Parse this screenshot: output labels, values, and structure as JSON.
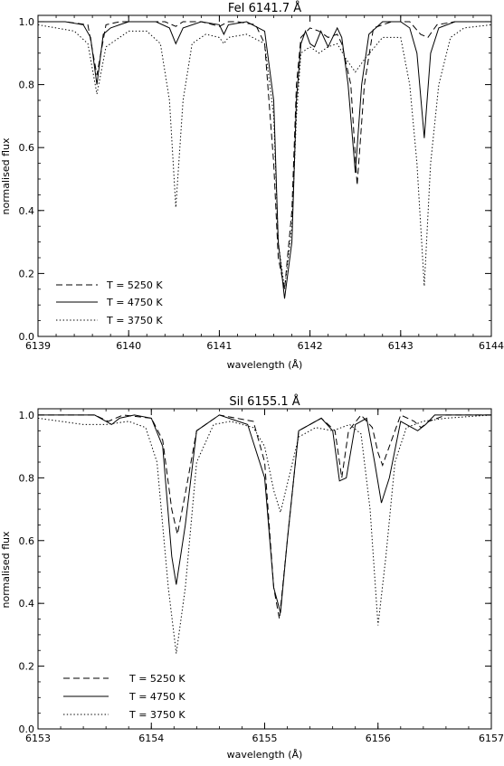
{
  "chart_data": [
    {
      "type": "line",
      "title": "FeI 6141.7 Å",
      "xlabel": "wavelength (Å)",
      "ylabel": "normalised flux",
      "xlim": [
        6139,
        6144
      ],
      "ylim": [
        0.0,
        1.02
      ],
      "xticks": [
        6139,
        6140,
        6141,
        6142,
        6143,
        6144
      ],
      "xtick_labels": [
        "6139",
        "6140",
        "6141",
        "6142",
        "6143",
        "6144"
      ],
      "yticks": [
        0.0,
        0.2,
        0.4,
        0.6,
        0.8,
        1.0
      ],
      "ytick_labels": [
        "0.0",
        "0.2",
        "0.4",
        "0.6",
        "0.8",
        "1.0"
      ],
      "legend_position": "bottom-left",
      "series": [
        {
          "name": "T = 5250 K",
          "style": "dashed",
          "x": [
            6139.0,
            6139.3,
            6139.55,
            6139.65,
            6139.75,
            6139.9,
            6140.1,
            6140.4,
            6140.52,
            6140.6,
            6140.8,
            6141.0,
            6141.1,
            6141.2,
            6141.4,
            6141.5,
            6141.6,
            6141.65,
            6141.72,
            6141.8,
            6141.85,
            6141.9,
            6142.0,
            6142.1,
            6142.2,
            6142.3,
            6142.35,
            6142.45,
            6142.52,
            6142.6,
            6142.7,
            6142.9,
            6143.1,
            6143.22,
            6143.3,
            6143.4,
            6143.6,
            6144.0
          ],
          "y": [
            1.0,
            1.0,
            0.99,
            0.83,
            0.99,
            1.0,
            1.0,
            1.0,
            0.985,
            1.0,
            1.0,
            0.985,
            1.0,
            1.0,
            0.99,
            0.93,
            0.55,
            0.25,
            0.15,
            0.4,
            0.8,
            0.95,
            0.98,
            0.97,
            0.95,
            0.96,
            0.93,
            0.8,
            0.48,
            0.8,
            0.98,
            1.0,
            1.0,
            0.96,
            0.95,
            0.99,
            1.0,
            1.0
          ]
        },
        {
          "name": "T = 4750 K",
          "style": "solid",
          "x": [
            6139.0,
            6139.3,
            6139.5,
            6139.58,
            6139.65,
            6139.72,
            6139.8,
            6139.9,
            6140.0,
            6140.1,
            6140.3,
            6140.45,
            6140.52,
            6140.6,
            6140.8,
            6141.0,
            6141.05,
            6141.1,
            6141.3,
            6141.5,
            6141.6,
            6141.65,
            6141.72,
            6141.8,
            6141.85,
            6141.9,
            6141.95,
            6142.0,
            6142.05,
            6142.12,
            6142.2,
            6142.3,
            6142.35,
            6142.42,
            6142.5,
            6142.57,
            6142.65,
            6142.8,
            6143.0,
            6143.1,
            6143.18,
            6143.26,
            6143.33,
            6143.42,
            6143.6,
            6144.0
          ],
          "y": [
            1.0,
            1.0,
            0.99,
            0.95,
            0.8,
            0.96,
            0.98,
            0.99,
            1.0,
            1.0,
            1.0,
            0.98,
            0.93,
            0.98,
            1.0,
            0.99,
            0.96,
            0.99,
            1.0,
            0.97,
            0.75,
            0.3,
            0.12,
            0.3,
            0.75,
            0.93,
            0.97,
            0.93,
            0.92,
            0.97,
            0.92,
            0.98,
            0.95,
            0.8,
            0.52,
            0.8,
            0.96,
            1.0,
            1.0,
            0.98,
            0.9,
            0.63,
            0.9,
            0.98,
            1.0,
            1.0
          ]
        },
        {
          "name": "T = 3750 K",
          "style": "dotted",
          "x": [
            6139.0,
            6139.2,
            6139.4,
            6139.55,
            6139.65,
            6139.75,
            6139.9,
            6140.0,
            6140.2,
            6140.35,
            6140.45,
            6140.52,
            6140.6,
            6140.7,
            6140.85,
            6141.0,
            6141.05,
            6141.1,
            6141.3,
            6141.5,
            6141.6,
            6141.65,
            6141.72,
            6141.8,
            6141.85,
            6141.9,
            6142.0,
            6142.1,
            6142.2,
            6142.3,
            6142.4,
            6142.5,
            6142.6,
            6142.8,
            6143.0,
            6143.1,
            6143.18,
            6143.26,
            6143.33,
            6143.42,
            6143.55,
            6143.7,
            6144.0
          ],
          "y": [
            0.99,
            0.98,
            0.97,
            0.93,
            0.77,
            0.92,
            0.95,
            0.97,
            0.97,
            0.93,
            0.75,
            0.41,
            0.75,
            0.93,
            0.96,
            0.95,
            0.93,
            0.95,
            0.96,
            0.93,
            0.7,
            0.3,
            0.15,
            0.35,
            0.7,
            0.9,
            0.92,
            0.9,
            0.92,
            0.93,
            0.88,
            0.84,
            0.88,
            0.95,
            0.95,
            0.8,
            0.55,
            0.16,
            0.55,
            0.8,
            0.95,
            0.98,
            0.99
          ]
        }
      ]
    },
    {
      "type": "line",
      "title": "SiI 6155.1 Å",
      "xlabel": "wavelength (Å)",
      "ylabel": "normalised flux",
      "xlim": [
        6153,
        6157
      ],
      "ylim": [
        0.0,
        1.02
      ],
      "xticks": [
        6153,
        6154,
        6155,
        6156,
        6157
      ],
      "xtick_labels": [
        "6153",
        "6154",
        "6155",
        "6156",
        "6157"
      ],
      "yticks": [
        0.0,
        0.2,
        0.4,
        0.6,
        0.8,
        1.0
      ],
      "ytick_labels": [
        "0.0",
        "0.2",
        "0.4",
        "0.6",
        "0.8",
        "1.0"
      ],
      "legend_position": "bottom-left",
      "series": [
        {
          "name": "T = 5250 K",
          "style": "dashed",
          "x": [
            6153.0,
            6153.5,
            6153.62,
            6153.75,
            6154.0,
            6154.1,
            6154.18,
            6154.23,
            6154.3,
            6154.4,
            6154.6,
            6154.9,
            6155.0,
            6155.08,
            6155.13,
            6155.2,
            6155.3,
            6155.5,
            6155.62,
            6155.68,
            6155.74,
            6155.85,
            6155.95,
            6156.0,
            6156.04,
            6156.1,
            6156.2,
            6156.32,
            6156.38,
            6156.45,
            6156.6,
            6157.0
          ],
          "y": [
            1.0,
            1.0,
            0.98,
            1.0,
            0.99,
            0.92,
            0.7,
            0.62,
            0.75,
            0.95,
            1.0,
            0.98,
            0.85,
            0.45,
            0.35,
            0.6,
            0.95,
            0.99,
            0.95,
            0.8,
            0.95,
            1.0,
            0.96,
            0.88,
            0.84,
            0.9,
            1.0,
            0.98,
            0.96,
            0.98,
            1.0,
            1.0
          ]
        },
        {
          "name": "T = 4750 K",
          "style": "solid",
          "x": [
            6153.0,
            6153.5,
            6153.6,
            6153.65,
            6153.72,
            6153.85,
            6154.0,
            6154.1,
            6154.18,
            6154.22,
            6154.3,
            6154.4,
            6154.6,
            6154.85,
            6155.0,
            6155.08,
            6155.14,
            6155.2,
            6155.3,
            6155.5,
            6155.6,
            6155.66,
            6155.72,
            6155.8,
            6155.9,
            6155.97,
            6156.03,
            6156.1,
            6156.2,
            6156.3,
            6156.35,
            6156.42,
            6156.5,
            6157.0
          ],
          "y": [
            1.0,
            1.0,
            0.98,
            0.97,
            0.99,
            1.0,
            0.99,
            0.9,
            0.55,
            0.46,
            0.65,
            0.95,
            1.0,
            0.97,
            0.8,
            0.45,
            0.37,
            0.6,
            0.95,
            0.99,
            0.95,
            0.79,
            0.8,
            0.97,
            0.99,
            0.85,
            0.72,
            0.8,
            0.98,
            0.96,
            0.95,
            0.97,
            1.0,
            1.0
          ]
        },
        {
          "name": "T = 3750 K",
          "style": "dotted",
          "x": [
            6153.0,
            6153.2,
            6153.4,
            6153.6,
            6153.8,
            6153.95,
            6154.05,
            6154.15,
            6154.22,
            6154.3,
            6154.4,
            6154.55,
            6154.7,
            6154.9,
            6155.0,
            6155.08,
            6155.14,
            6155.2,
            6155.3,
            6155.45,
            6155.6,
            6155.75,
            6155.85,
            6155.93,
            6156.0,
            6156.07,
            6156.15,
            6156.25,
            6156.4,
            6156.6,
            6157.0
          ],
          "y": [
            0.99,
            0.98,
            0.97,
            0.97,
            0.98,
            0.96,
            0.85,
            0.45,
            0.24,
            0.45,
            0.85,
            0.97,
            0.98,
            0.96,
            0.9,
            0.76,
            0.69,
            0.78,
            0.93,
            0.96,
            0.95,
            0.97,
            0.94,
            0.7,
            0.33,
            0.55,
            0.85,
            0.96,
            0.98,
            0.99,
            1.0
          ]
        }
      ]
    }
  ]
}
